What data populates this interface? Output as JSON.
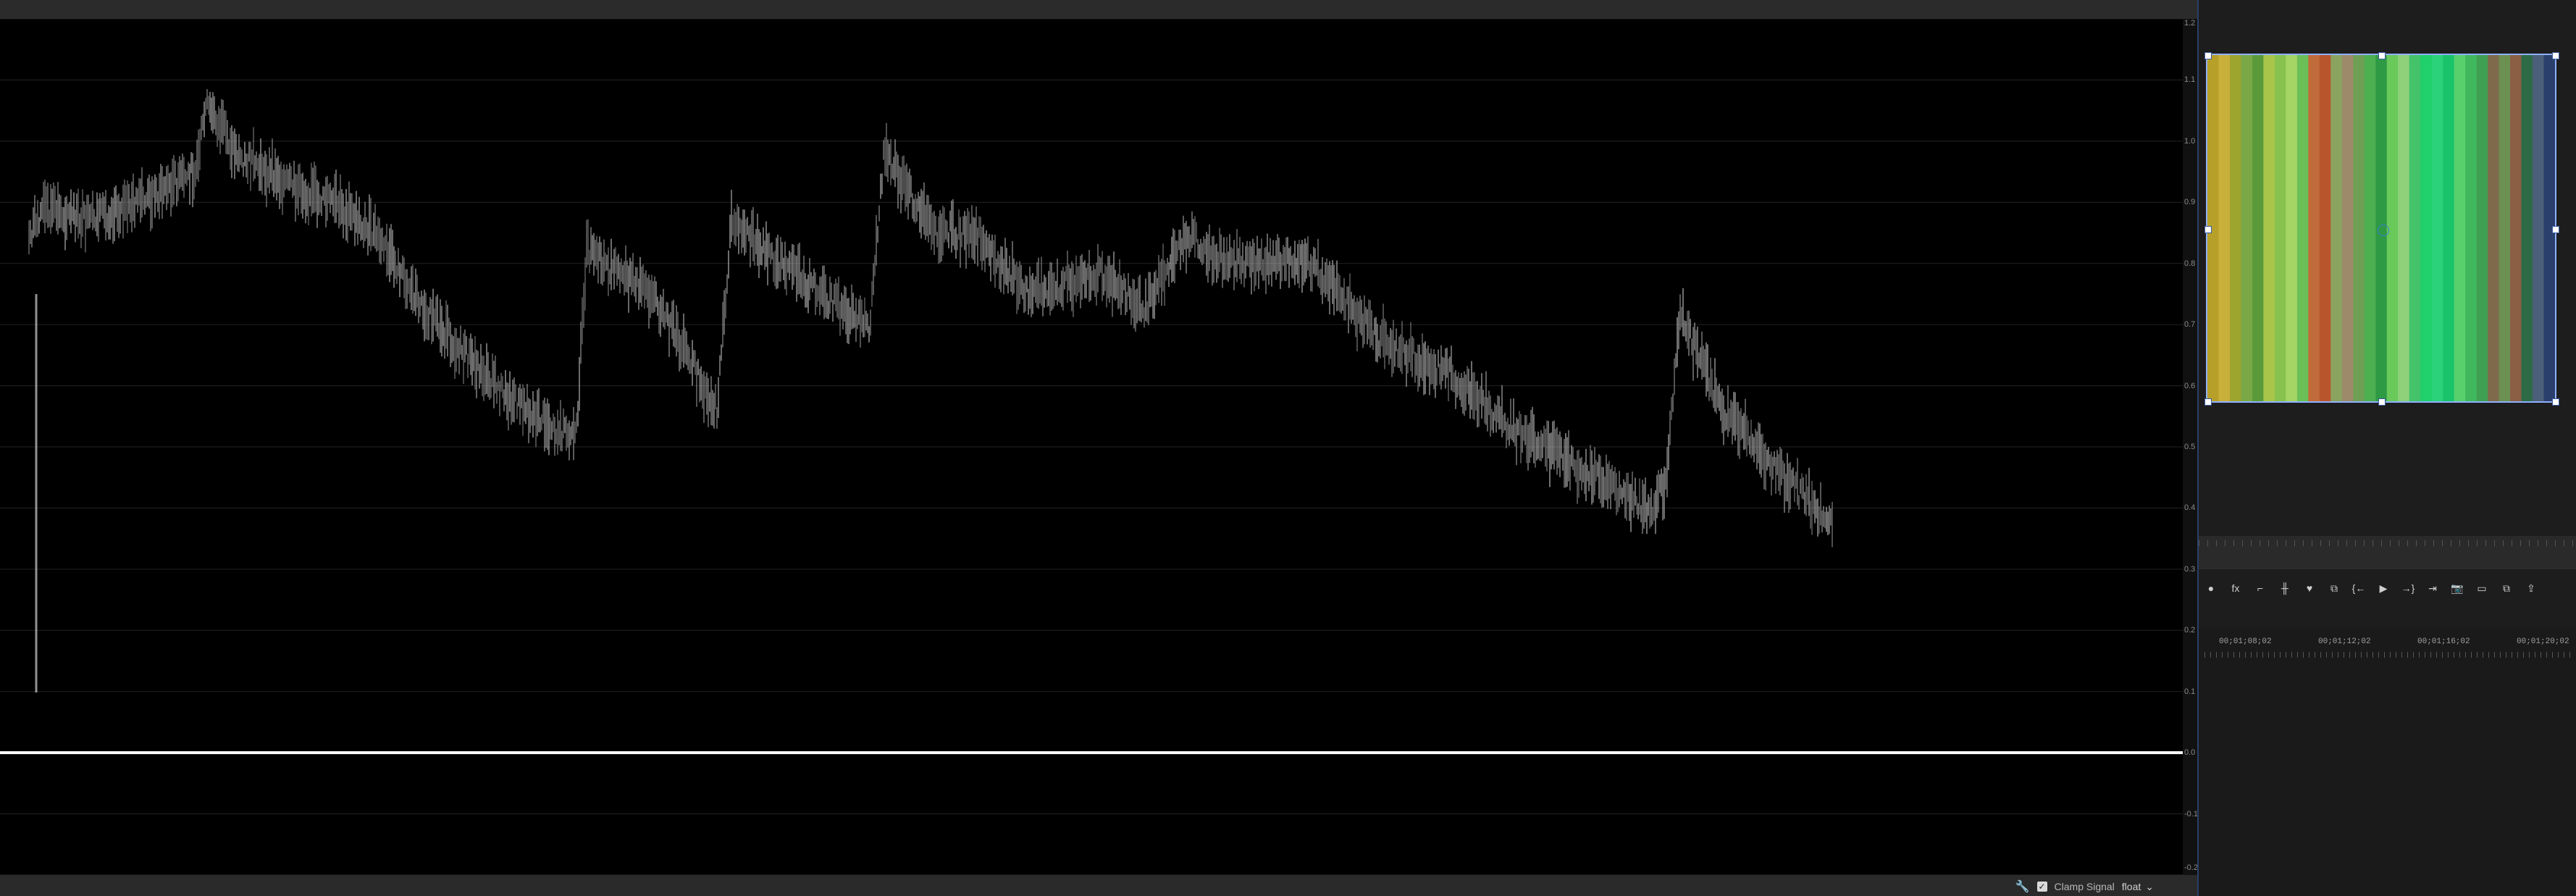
{
  "scope": {
    "type": "waveform",
    "grid_labels": [
      "1.2",
      "1.1",
      "1.0",
      "0.9",
      "0.8",
      "0.7",
      "0.6",
      "0.5",
      "0.4",
      "0.3",
      "0.2",
      "0.1",
      "0.0",
      "-0.1",
      "-0.2"
    ],
    "grid_color": "#222222",
    "trace_color": "#cfcfcf",
    "baseline_color": "#ffffff"
  },
  "bottom_bar": {
    "clamp_label": "Clamp Signal",
    "clamp_checked": "✓",
    "format_value": "float",
    "wrench_icon": "🔧",
    "dropdown_icon": "⌄"
  },
  "program_monitor": {
    "stripe_colors": [
      "#b7a02a",
      "#c9b03a",
      "#9da52f",
      "#7aa846",
      "#5b9a3a",
      "#a9c64a",
      "#88c24e",
      "#a5d564",
      "#6bbf57",
      "#c26b3a",
      "#b9552d",
      "#8aa35e",
      "#9c8a6a",
      "#6f9f54",
      "#4caf50",
      "#2f9a44",
      "#6ac95b",
      "#8fd17a",
      "#44c36a",
      "#1fd06b",
      "#2bd27a",
      "#19c36a",
      "#58d06c",
      "#40b85d",
      "#3f9f52",
      "#7f6a4b",
      "#6c8f52",
      "#8a5f44",
      "#2d6b46",
      "#4b5f78",
      "#2a3f6b"
    ],
    "accent": "#8fb0ff"
  },
  "transport": {
    "buttons": [
      {
        "name": "record-icon",
        "glyph": "●"
      },
      {
        "name": "fx-icon",
        "glyph": "fx"
      },
      {
        "name": "mark-in-icon",
        "glyph": "⌐"
      },
      {
        "name": "ripple-icon",
        "glyph": "╫"
      },
      {
        "name": "marker-icon",
        "glyph": "♥"
      },
      {
        "name": "overwrite-icon",
        "glyph": "⧉"
      },
      {
        "name": "step-back-icon",
        "glyph": "{←"
      },
      {
        "name": "play-icon",
        "glyph": "▶"
      },
      {
        "name": "step-forward-icon",
        "glyph": "→}"
      },
      {
        "name": "insert-icon",
        "glyph": "⇥"
      },
      {
        "name": "camera-icon",
        "glyph": "📷"
      },
      {
        "name": "safe-margins-icon",
        "glyph": "▭"
      },
      {
        "name": "compare-icon",
        "glyph": "⧉"
      },
      {
        "name": "export-icon",
        "glyph": "⇪"
      }
    ]
  },
  "timeline": {
    "timecodes": [
      "00;01;08;02",
      "00;01;12;02",
      "00;01;16;02",
      "00;01;20;02"
    ]
  }
}
